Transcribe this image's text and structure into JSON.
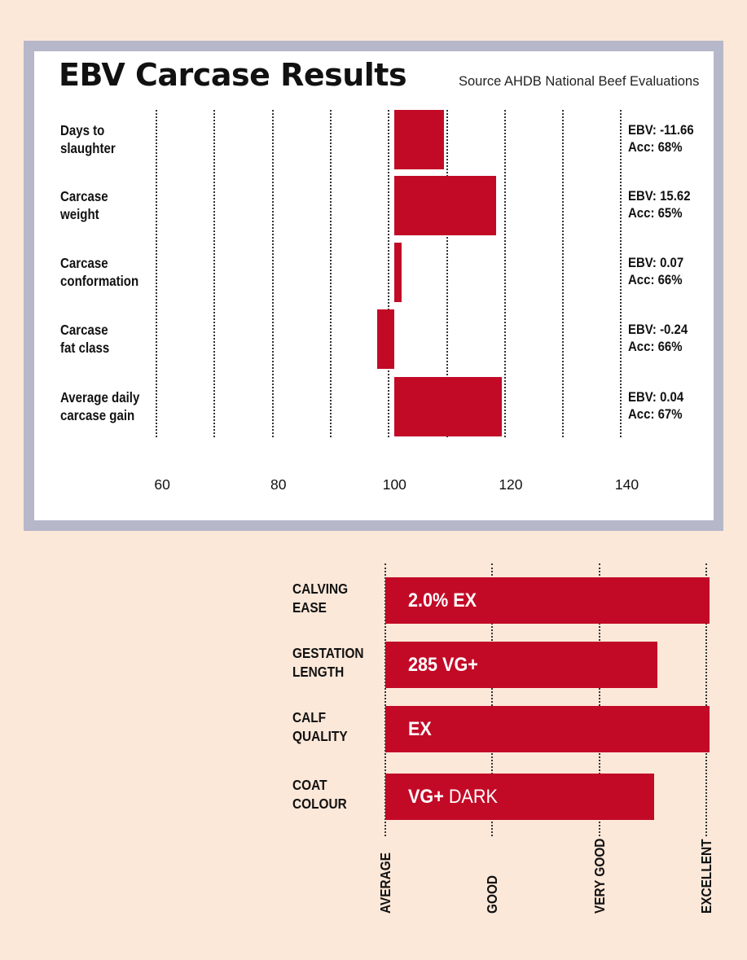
{
  "title": "EBV Carcase Results",
  "source": "Source AHDB National Beef Evaluations",
  "chart_data": [
    {
      "type": "bar",
      "orientation": "horizontal",
      "title": "EBV Carcase Results",
      "subtitle": "Source AHDB National Beef Evaluations",
      "categories": [
        "Days to\nslaughter",
        "Carcase\nweight",
        "Carcase\nconformation",
        "Carcase\nfat class",
        "Average daily\ncarcase gain"
      ],
      "values": [
        108.5,
        117.5,
        101.2,
        97,
        118.5
      ],
      "baseline": 100,
      "annotations": [
        "EBV: -11.66\nAcc: 68%",
        "EBV: 15.62\nAcc: 65%",
        "EBV: 0.07\nAcc: 66%",
        "EBV: -0.24\nAcc: 66%",
        "EBV: 0.04\nAcc: 67%"
      ],
      "xlim": [
        59,
        150
      ],
      "gridlines": [
        59,
        69,
        79,
        89,
        99,
        109,
        119,
        129,
        139
      ],
      "x_ticks": [
        60,
        80,
        100,
        120,
        140
      ],
      "x_tick_labels": [
        "60",
        "80",
        "100",
        "120",
        "140"
      ],
      "grid": true,
      "colors": {
        "bar": "#c20a27"
      }
    },
    {
      "type": "bar",
      "orientation": "horizontal",
      "categories": [
        "CALVING\nEASE",
        "GESTATION\nLENGTH",
        "CALF\nQUALITY",
        "COAT\nCOLOUR"
      ],
      "values": [
        3.03,
        2.54,
        3.03,
        2.51
      ],
      "bar_labels": [
        {
          "strong": "2.0% EX",
          "light": ""
        },
        {
          "strong": "285 VG+",
          "light": ""
        },
        {
          "strong": "EX",
          "light": ""
        },
        {
          "strong": "VG+",
          "light": " DARK"
        }
      ],
      "x_tick_labels": [
        "AVERAGE",
        "GOOD",
        "VERY GOOD",
        "EXCELLENT"
      ],
      "xlim": [
        0,
        3
      ],
      "grid": true,
      "colors": {
        "bar": "#c20a27"
      }
    }
  ]
}
